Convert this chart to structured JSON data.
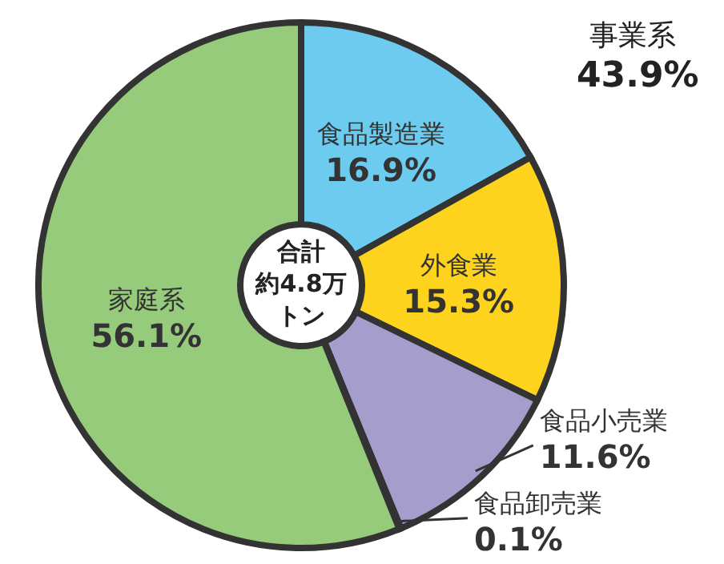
{
  "chart_data": {
    "type": "donut",
    "categories": [
      "食品製造業",
      "外食業",
      "食品小売業",
      "食品卸売業",
      "家庭系"
    ],
    "values": [
      16.9,
      15.3,
      11.6,
      0.1,
      56.1
    ],
    "colors": [
      "#6ccbef",
      "#fdd31d",
      "#a59dcc",
      "#f0a8a8",
      "#96cb7b"
    ],
    "value_labels": [
      "16.9%",
      "15.3%",
      "11.6%",
      "0.1%",
      "56.1%"
    ],
    "annotations": [
      "合計",
      "約4.8万",
      "トン",
      "事業系",
      "43.9%"
    ]
  }
}
